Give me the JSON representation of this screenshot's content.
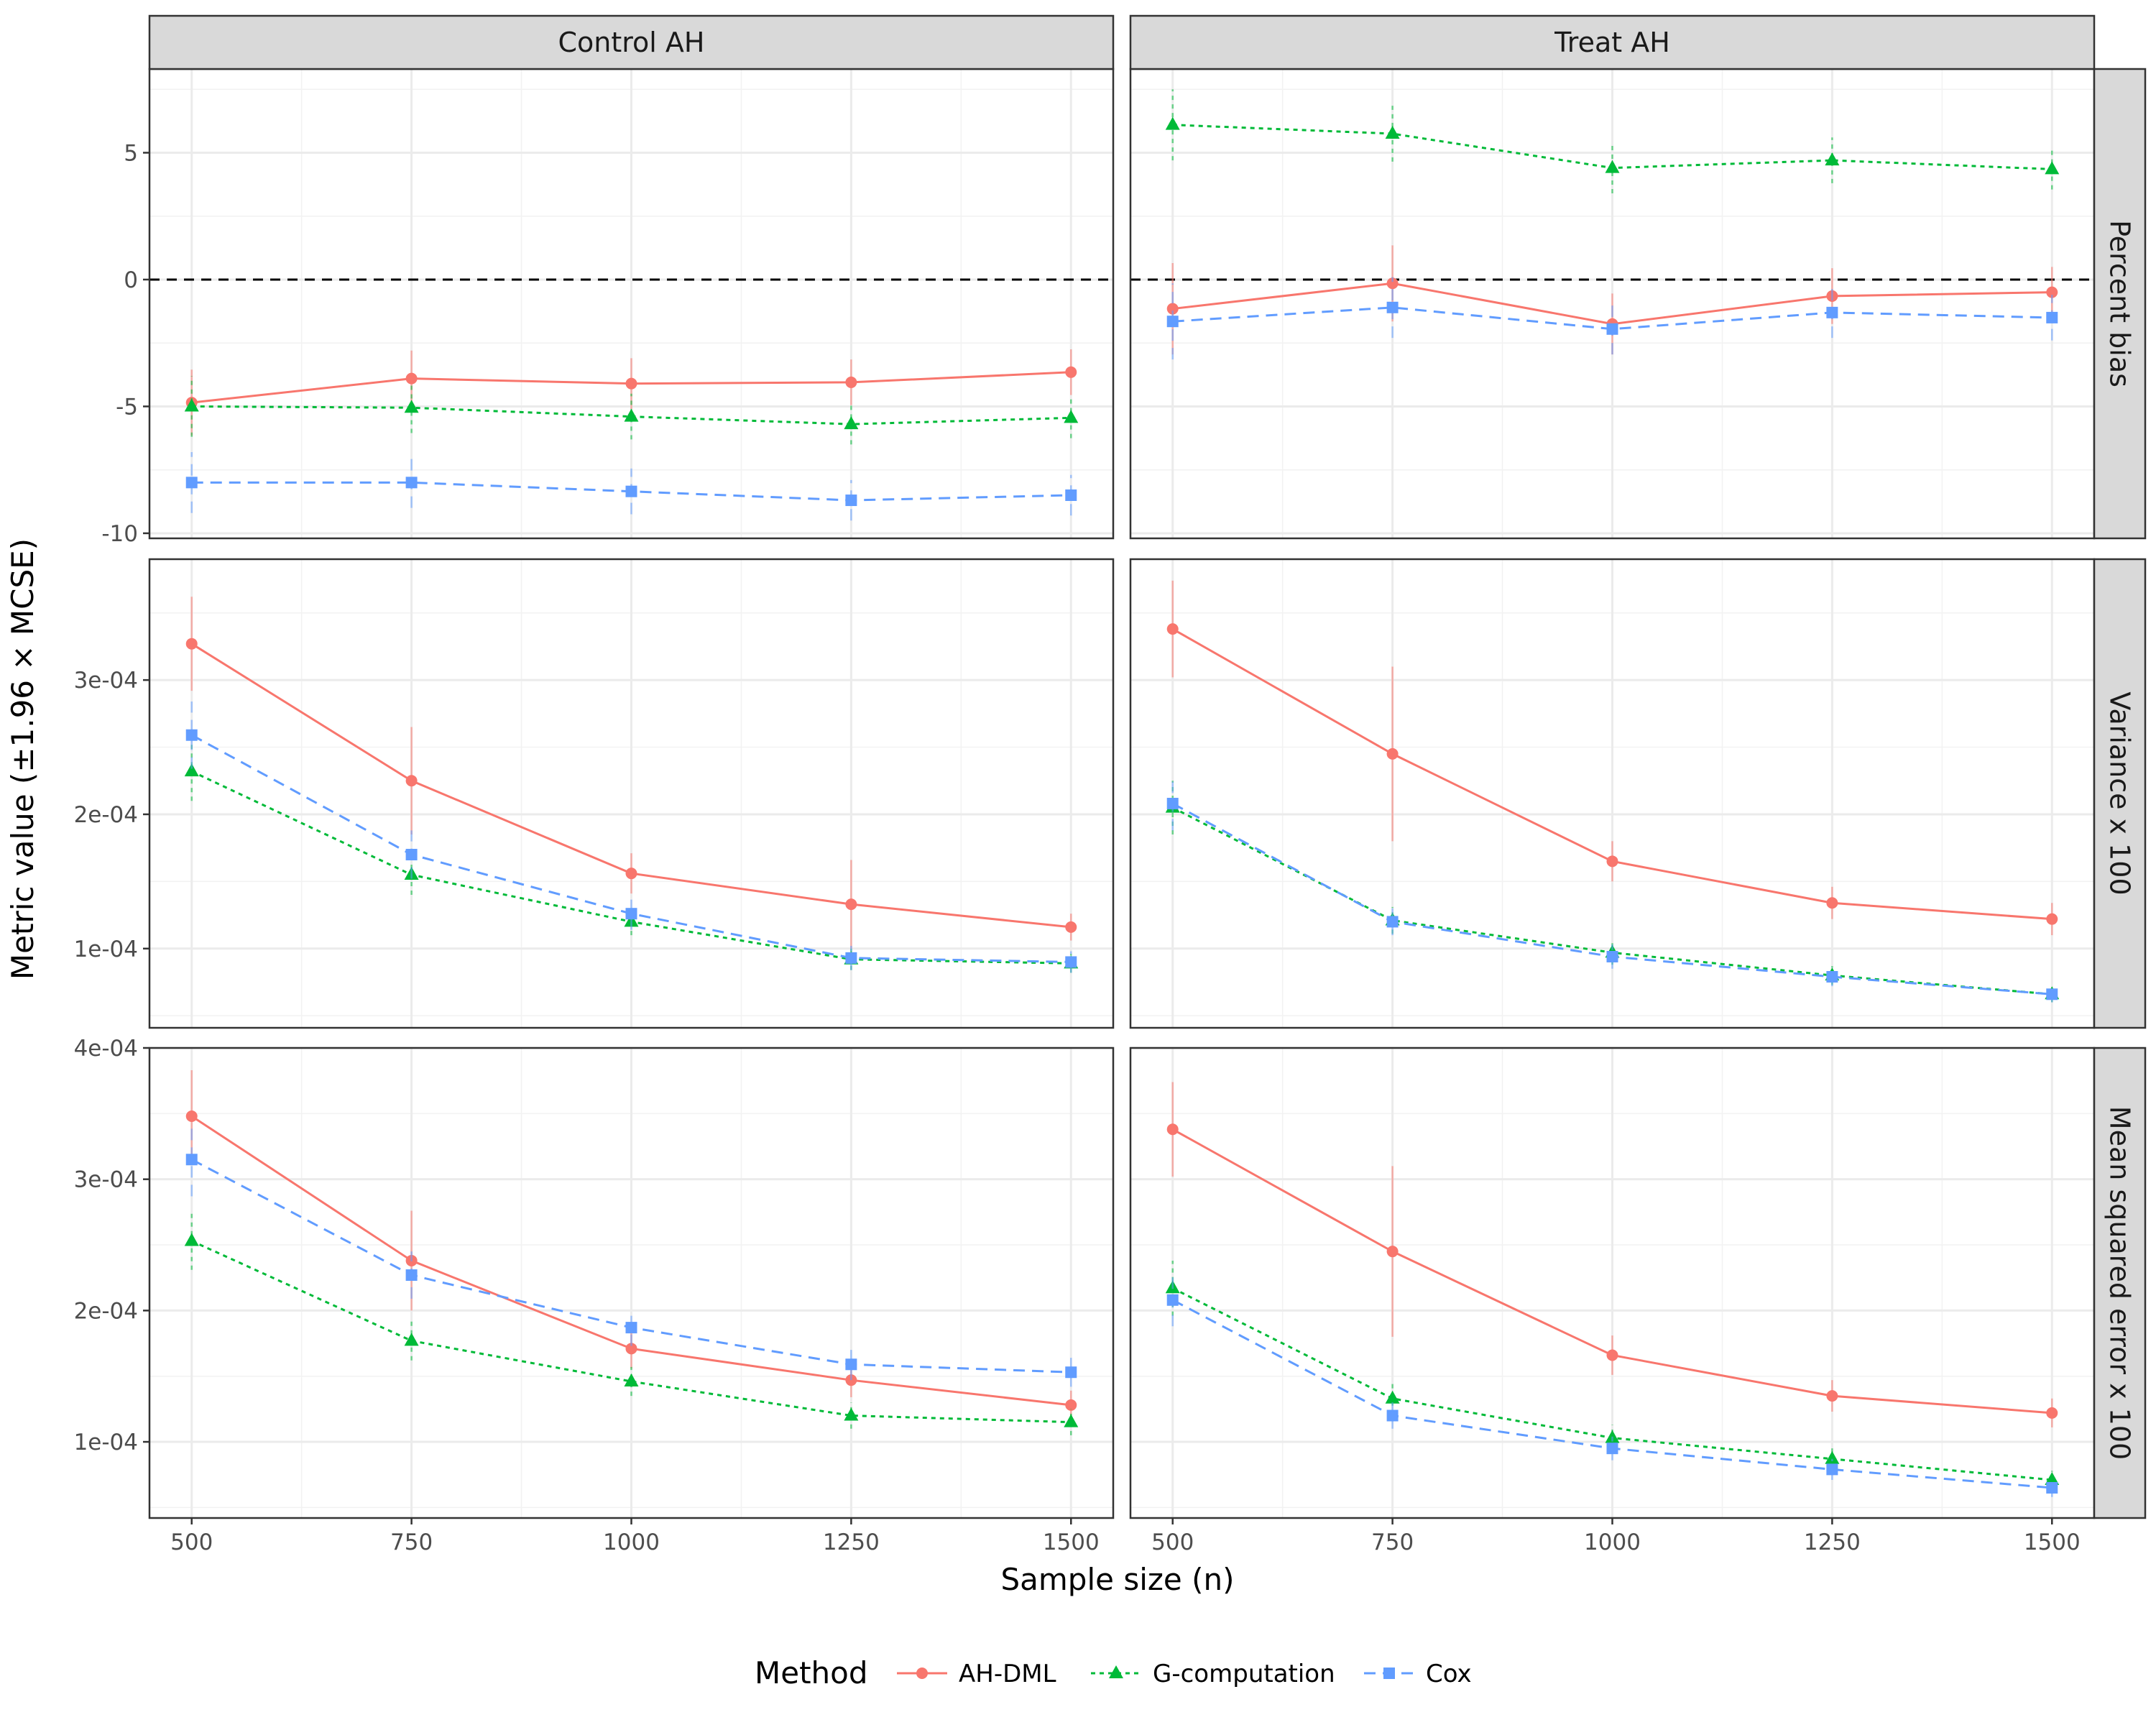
{
  "chart_data": {
    "type": "line",
    "facet_columns": [
      "Control AH",
      "Treat AH"
    ],
    "facet_rows": [
      "Percent bias",
      "Variance x 100",
      "Mean squared error x 100"
    ],
    "xlabel": "Sample size (n)",
    "ylabel": "Metric value (±1.96 × MCSE)",
    "x": [
      500,
      750,
      1000,
      1250,
      1500
    ],
    "x_tick_labels": [
      "500",
      "750",
      "1000",
      "1250",
      "1500"
    ],
    "xlim": [
      452,
      1548
    ],
    "legend": {
      "title": "Method",
      "position": "bottom",
      "items": [
        {
          "name": "AH-DML",
          "color": "#F8766D",
          "marker": "circle",
          "dash": "solid"
        },
        {
          "name": "G-computation",
          "color": "#00BA38",
          "marker": "triangle",
          "dash": "dotted"
        },
        {
          "name": "Cox",
          "color": "#619CFF",
          "marker": "square",
          "dash": "dashed"
        }
      ]
    },
    "grid": true,
    "panels": [
      {
        "row": 0,
        "col": 0,
        "ylim": [
          -10.2,
          8.3
        ],
        "y_ticks": [
          -10,
          -5,
          0,
          5
        ],
        "y_tick_labels": [
          "-10",
          "-5",
          "0",
          "5"
        ],
        "reference_line": 0,
        "series": [
          {
            "name": "AH-DML",
            "values": [
              -4.85,
              -3.9,
              -4.1,
              -4.05,
              -3.65
            ],
            "error": [
              1.3,
              1.1,
              1.0,
              0.9,
              0.9
            ]
          },
          {
            "name": "G-computation",
            "values": [
              -5.0,
              -5.05,
              -5.4,
              -5.7,
              -5.45
            ],
            "error": [
              1.2,
              1.0,
              0.9,
              0.8,
              0.8
            ]
          },
          {
            "name": "Cox",
            "values": [
              -8.0,
              -8.0,
              -8.35,
              -8.7,
              -8.5
            ],
            "error": [
              1.2,
              1.0,
              0.9,
              0.8,
              0.8
            ]
          }
        ]
      },
      {
        "row": 0,
        "col": 1,
        "ylim": [
          -10.2,
          8.3
        ],
        "y_ticks": [
          -10,
          -5,
          0,
          5
        ],
        "y_tick_labels": [
          "-10",
          "-5",
          "0",
          "5"
        ],
        "reference_line": 0,
        "series": [
          {
            "name": "AH-DML",
            "values": [
              -1.15,
              -0.15,
              -1.75,
              -0.65,
              -0.5
            ],
            "error": [
              1.8,
              1.5,
              1.2,
              1.1,
              1.0
            ]
          },
          {
            "name": "G-computation",
            "values": [
              6.1,
              5.75,
              4.4,
              4.7,
              4.35
            ],
            "error": [
              1.4,
              1.1,
              1.0,
              0.9,
              0.8
            ]
          },
          {
            "name": "Cox",
            "values": [
              -1.65,
              -1.1,
              -1.95,
              -1.3,
              -1.5
            ],
            "error": [
              1.5,
              1.2,
              1.0,
              1.0,
              0.9
            ]
          }
        ]
      },
      {
        "row": 1,
        "col": 0,
        "ylim": [
          4.1e-05,
          0.00039
        ],
        "y_ticks": [
          0.0001,
          0.0002,
          0.0003
        ],
        "y_tick_labels": [
          "1e-04",
          "2e-04",
          "3e-04"
        ],
        "series": [
          {
            "name": "AH-DML",
            "values": [
              0.000327,
              0.000225,
              0.000156,
              0.000133,
              0.000116
            ],
            "error": [
              3.5e-05,
              4e-05,
              1.5e-05,
              3.3e-05,
              1e-05
            ]
          },
          {
            "name": "G-computation",
            "values": [
              0.000232,
              0.000155,
              0.00012,
              9.2e-05,
              8.9e-05
            ],
            "error": [
              2.2e-05,
              1.5e-05,
              1e-05,
              8e-06,
              7e-06
            ]
          },
          {
            "name": "Cox",
            "values": [
              0.000259,
              0.00017,
              0.000126,
              9.3e-05,
              9e-05
            ],
            "error": [
              2.5e-05,
              1.8e-05,
              1.2e-05,
              9e-06,
              8e-06
            ]
          }
        ]
      },
      {
        "row": 1,
        "col": 1,
        "ylim": [
          4.1e-05,
          0.00039
        ],
        "y_ticks": [
          0.0001,
          0.0002,
          0.0003
        ],
        "y_tick_labels": [
          "1e-04",
          "2e-04",
          "3e-04"
        ],
        "series": [
          {
            "name": "AH-DML",
            "values": [
              0.000338,
              0.000245,
              0.000165,
              0.000134,
              0.000122
            ],
            "error": [
              3.6e-05,
              6.5e-05,
              1.5e-05,
              1.2e-05,
              1.2e-05
            ]
          },
          {
            "name": "G-computation",
            "values": [
              0.000205,
              0.000121,
              9.7e-05,
              8e-05,
              6.6e-05
            ],
            "error": [
              2e-05,
              1e-05,
              9e-06,
              7e-06,
              6e-06
            ]
          },
          {
            "name": "Cox",
            "values": [
              0.000208,
              0.00012,
              9.4e-05,
              7.9e-05,
              6.6e-05
            ],
            "error": [
              2e-05,
              1e-05,
              9e-06,
              7e-06,
              6e-06
            ]
          }
        ]
      },
      {
        "row": 2,
        "col": 0,
        "ylim": [
          4.2e-05,
          0.0004
        ],
        "y_ticks": [
          0.0001,
          0.0002,
          0.0003,
          0.0004
        ],
        "y_tick_labels": [
          "1e-04",
          "2e-04",
          "3e-04",
          "4e-04"
        ],
        "series": [
          {
            "name": "AH-DML",
            "values": [
              0.000348,
              0.000238,
              0.000171,
              0.000147,
              0.000128
            ],
            "error": [
              3.5e-05,
              3.8e-05,
              1.5e-05,
              1.3e-05,
              1.1e-05
            ]
          },
          {
            "name": "G-computation",
            "values": [
              0.000253,
              0.000177,
              0.000146,
              0.00012,
              0.000115
            ],
            "error": [
              2.2e-05,
              1.5e-05,
              1.1e-05,
              1e-05,
              1e-05
            ]
          },
          {
            "name": "Cox",
            "values": [
              0.000315,
              0.000227,
              0.000187,
              0.000159,
              0.000153
            ],
            "error": [
              2.8e-05,
              1.8e-05,
              1.4e-05,
              1.2e-05,
              1.1e-05
            ]
          }
        ]
      },
      {
        "row": 2,
        "col": 1,
        "ylim": [
          4.2e-05,
          0.0004
        ],
        "y_ticks": [
          0.0001,
          0.0002,
          0.0003,
          0.0004
        ],
        "y_tick_labels": [
          "1e-04",
          "2e-04",
          "3e-04",
          "4e-04"
        ],
        "series": [
          {
            "name": "AH-DML",
            "values": [
              0.000338,
              0.000245,
              0.000166,
              0.000135,
              0.000122
            ],
            "error": [
              3.6e-05,
              6.5e-05,
              1.5e-05,
              1.2e-05,
              1.1e-05
            ]
          },
          {
            "name": "G-computation",
            "values": [
              0.000217,
              0.000133,
              0.000103,
              8.7e-05,
              7.1e-05
            ],
            "error": [
              2.1e-05,
              1.2e-05,
              1e-05,
              8e-06,
              7e-06
            ]
          },
          {
            "name": "Cox",
            "values": [
              0.000208,
              0.00012,
              9.5e-05,
              7.9e-05,
              6.5e-05
            ],
            "error": [
              2e-05,
              1e-05,
              9e-06,
              8e-06,
              7e-06
            ]
          }
        ]
      }
    ]
  }
}
